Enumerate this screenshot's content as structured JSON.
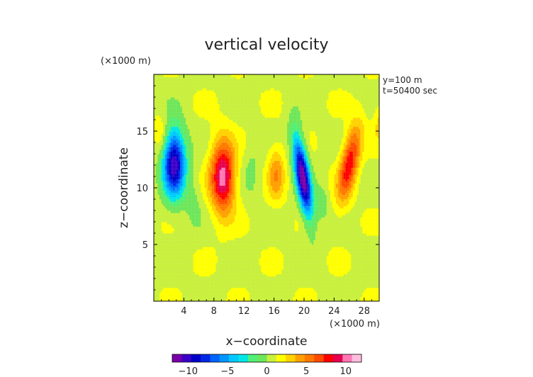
{
  "chart_data": {
    "type": "heatmap",
    "title": "vertical velocity",
    "xlabel": "x−coordinate",
    "ylabel": "z−coordinate",
    "x_unit": "(×1000 m)",
    "y_unit": "(×1000 m)",
    "annotations": [
      "y=100 m",
      "t=50400 sec"
    ],
    "xlim": [
      0,
      30
    ],
    "ylim": [
      0,
      20
    ],
    "x_ticks": [
      4,
      8,
      12,
      16,
      20,
      24,
      28
    ],
    "y_ticks": [
      5,
      10,
      15
    ],
    "x_tick_labels": [
      "4",
      "8",
      "12",
      "16",
      "20",
      "24",
      "28"
    ],
    "y_tick_labels": [
      "5",
      "10",
      "15"
    ],
    "color_range": [
      -12,
      12
    ],
    "colorbar_ticks": [
      -10,
      -5,
      0,
      5,
      10
    ],
    "colorbar_tick_labels": [
      "−10",
      "−5",
      "0",
      "5",
      "10"
    ],
    "colorbar_colors": [
      "#7a00a8",
      "#3c00c8",
      "#0000c8",
      "#0028e6",
      "#0064ff",
      "#0096ff",
      "#00c8ff",
      "#00e6e6",
      "#50f078",
      "#6ee65a",
      "#c8f03c",
      "#ffff00",
      "#ffd200",
      "#ffa000",
      "#ff7800",
      "#ff4b00",
      "#ff0000",
      "#e60050",
      "#ff78b4",
      "#ffbede"
    ],
    "features": [
      {
        "type": "downdraft",
        "x": 2.7,
        "z": 12.2,
        "peak": -10
      },
      {
        "type": "updraft",
        "x": 9.2,
        "z": 11.0,
        "peak": 8
      },
      {
        "type": "updraft",
        "x": 16.3,
        "z": 11.3,
        "peak": 3
      },
      {
        "type": "downdraft",
        "x": 19.3,
        "z": 11.0,
        "peak": -11
      },
      {
        "type": "updraft",
        "x": 26.2,
        "z": 12.4,
        "peak": 6
      }
    ]
  }
}
